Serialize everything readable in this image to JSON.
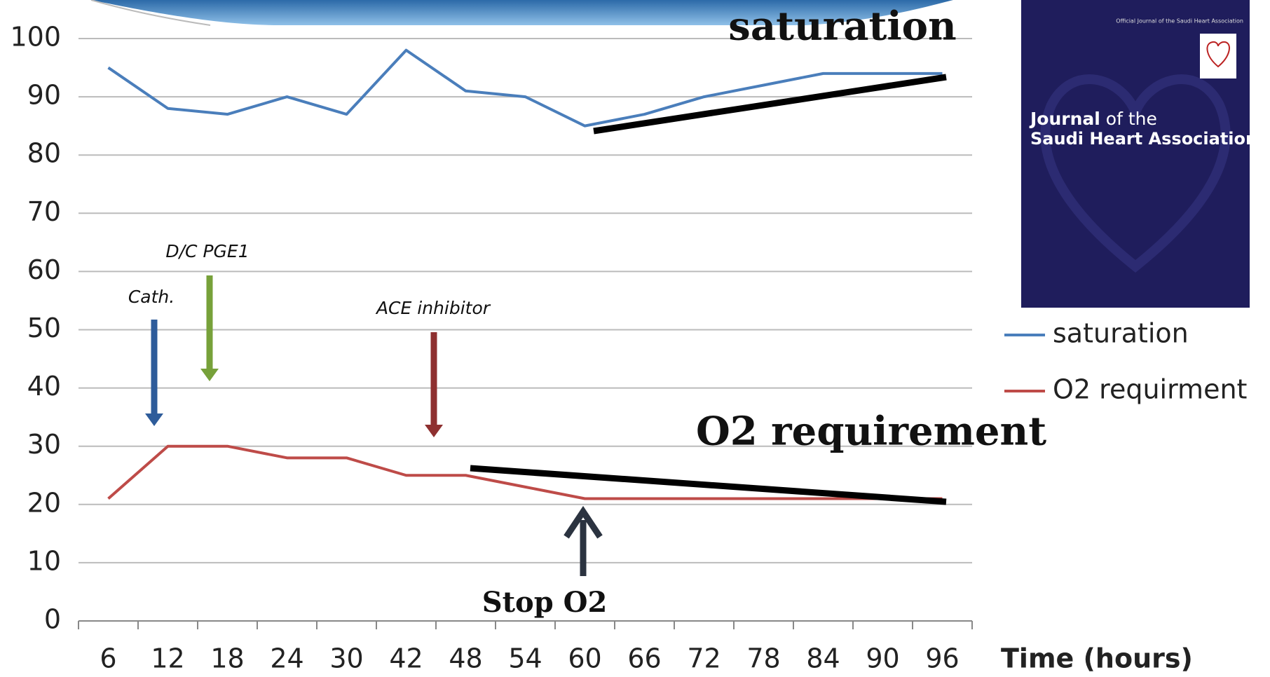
{
  "chart_data": {
    "type": "line",
    "categories": [
      "6",
      "12",
      "18",
      "24",
      "30",
      "42",
      "48",
      "54",
      "60",
      "66",
      "72",
      "78",
      "84",
      "90",
      "96"
    ],
    "x_label": "Time (hours)",
    "ylim": [
      0,
      100
    ],
    "yticks": [
      0,
      10,
      20,
      30,
      40,
      50,
      60,
      70,
      80,
      90,
      100
    ],
    "grid": true,
    "legend_position": "right",
    "series": [
      {
        "name": "saturation",
        "color": "#4a7ebb",
        "values": [
          95,
          88,
          87,
          90,
          87,
          98,
          91,
          90,
          85,
          87,
          90,
          92,
          94,
          94,
          94
        ]
      },
      {
        "name": "O2 requirment",
        "color": "#be4b48",
        "values": [
          21,
          30,
          30,
          28,
          28,
          25,
          25,
          23,
          21,
          21,
          21,
          21,
          21,
          21,
          21
        ]
      }
    ],
    "annotations": [
      "Cath.",
      "D/C PGE1",
      "ACE inhibitor",
      "saturation",
      "O2 requirement",
      "Stop O2"
    ]
  },
  "cover": {
    "subtitle": "Official Journal of the Saudi Heart Association",
    "title_bold": "Journal",
    "title_rest": "of the",
    "title_line2": "Saudi Heart Association"
  }
}
